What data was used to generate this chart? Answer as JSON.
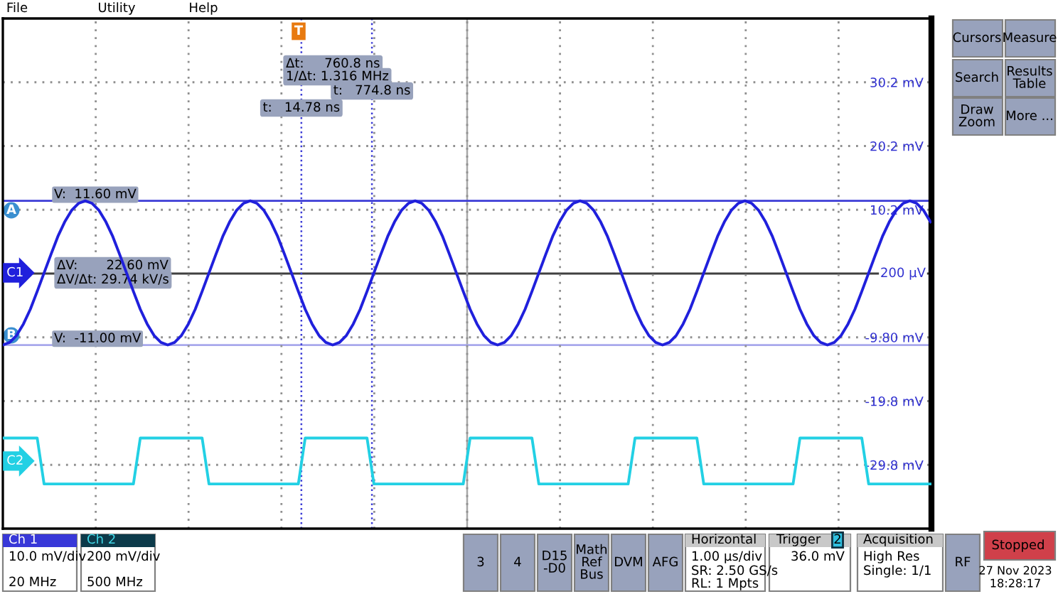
{
  "chart_data": {
    "type": "line",
    "x": [
      -3200,
      -3126,
      -3052,
      -2978,
      -2904,
      -2830,
      -2756,
      -2682,
      -2608,
      -2534,
      -2460,
      -2386,
      -2312,
      -2238,
      -2164,
      -2090,
      -2016,
      -1942,
      -1868,
      -1794,
      -1720,
      -1646,
      -1572,
      -1498,
      -1424,
      -1350,
      -1276,
      -1202,
      -1128,
      -1054,
      -980,
      -906,
      -832,
      -758,
      -684,
      -610,
      -536,
      -462,
      -388,
      -314,
      -240,
      -166,
      -92,
      -18,
      56,
      130,
      204,
      278,
      352,
      426,
      500,
      574,
      648,
      722,
      796,
      870,
      944,
      1018,
      1092,
      1166,
      1240,
      1314,
      1388,
      1462,
      1536,
      1610,
      1684,
      1758,
      1832,
      1906,
      1980,
      2054,
      2128,
      2202,
      2276,
      2350,
      2424,
      2498,
      2572,
      2646,
      2720,
      2794,
      2868,
      2942,
      3016,
      3090,
      3164,
      3238,
      3312,
      3386,
      3460,
      3534,
      3608,
      3682,
      3756,
      3830,
      3904,
      3978,
      4052,
      4126,
      4200,
      4274,
      4348,
      4422,
      4496,
      4570,
      4644,
      4718,
      4792,
      4866,
      4940,
      5014,
      5088,
      5162,
      5236,
      5310,
      5384,
      5458,
      5532,
      5606,
      5680,
      5754,
      5828,
      5902,
      5976,
      6050,
      6124,
      6198,
      6272,
      6346,
      6420,
      6494,
      6568,
      6642,
      6716,
      6790
    ],
    "series": [
      {
        "name": "C1",
        "color": "#2020dc",
        "values": [
          -11.0,
          -10.6,
          -9.5,
          -7.7,
          -5.4,
          -2.6,
          0.3,
          3.2,
          6.0,
          8.3,
          10.1,
          11.2,
          11.6,
          11.2,
          10.1,
          8.3,
          6.0,
          3.2,
          0.3,
          -2.6,
          -5.4,
          -7.7,
          -9.5,
          -10.6,
          -11.0,
          -10.6,
          -9.5,
          -7.7,
          -5.4,
          -2.6,
          0.3,
          3.2,
          6.0,
          8.3,
          10.1,
          11.2,
          11.6,
          11.2,
          10.1,
          8.3,
          6.0,
          3.2,
          0.3,
          -2.6,
          -5.4,
          -7.7,
          -9.5,
          -10.6,
          -11.0,
          -10.6,
          -9.5,
          -7.7,
          -5.4,
          -2.6,
          0.3,
          3.2,
          6.0,
          8.3,
          10.1,
          11.2,
          11.6,
          11.2,
          10.1,
          8.3,
          6.0,
          3.2,
          0.3,
          -2.6,
          -5.4,
          -7.7,
          -9.5,
          -10.6,
          -11.0,
          -10.6,
          -9.5,
          -7.7,
          -5.4,
          -2.6,
          0.3,
          3.2,
          6.0,
          8.3,
          10.1,
          11.2,
          11.6,
          11.2,
          10.1,
          8.3,
          6.0,
          3.2,
          0.3,
          -2.6,
          -5.4,
          -7.7,
          -9.5,
          -10.6,
          -11.0,
          -10.6,
          -9.5,
          -7.7,
          -5.4,
          -2.6,
          0.3,
          3.2,
          6.0,
          8.3,
          10.1,
          11.2,
          11.6,
          11.2,
          10.1,
          8.3,
          6.0,
          3.2,
          0.3,
          -2.6,
          -5.4,
          -7.7,
          -9.5,
          -10.6,
          -11.0,
          -10.6,
          -9.5,
          -7.7,
          -5.4,
          -2.6,
          0.3,
          3.2,
          6.0,
          8.3,
          10.1,
          11.2,
          11.6,
          11.2,
          10.1,
          8.3
        ]
      },
      {
        "name": "C2",
        "color": "#22d0e4",
        "values": [
          -25.6,
          -25.6,
          -25.6,
          -25.6,
          -25.6,
          -25.6,
          -32.8,
          -32.8,
          -32.8,
          -32.8,
          -32.8,
          -32.8,
          -32.8,
          -32.8,
          -32.8,
          -32.8,
          -32.8,
          -32.8,
          -32.8,
          -32.8,
          -25.6,
          -25.6,
          -25.6,
          -25.6,
          -25.6,
          -25.6,
          -25.6,
          -25.6,
          -25.6,
          -25.6,
          -32.8,
          -32.8,
          -32.8,
          -32.8,
          -32.8,
          -32.8,
          -32.8,
          -32.8,
          -32.8,
          -32.8,
          -32.8,
          -32.8,
          -32.8,
          -32.8,
          -25.6,
          -25.6,
          -25.6,
          -25.6,
          -25.6,
          -25.6,
          -25.6,
          -25.6,
          -25.6,
          -25.6,
          -32.8,
          -32.8,
          -32.8,
          -32.8,
          -32.8,
          -32.8,
          -32.8,
          -32.8,
          -32.8,
          -32.8,
          -32.8,
          -32.8,
          -32.8,
          -32.8,
          -25.6,
          -25.6,
          -25.6,
          -25.6,
          -25.6,
          -25.6,
          -25.6,
          -25.6,
          -25.6,
          -25.6,
          -32.8,
          -32.8,
          -32.8,
          -32.8,
          -32.8,
          -32.8,
          -32.8,
          -32.8,
          -32.8,
          -32.8,
          -32.8,
          -32.8,
          -32.8,
          -32.8,
          -25.6,
          -25.6,
          -25.6,
          -25.6,
          -25.6,
          -25.6,
          -25.6,
          -25.6,
          -25.6,
          -25.6,
          -32.8,
          -32.8,
          -32.8,
          -32.8,
          -32.8,
          -32.8,
          -32.8,
          -32.8,
          -32.8,
          -32.8,
          -32.8,
          -32.8,
          -32.8,
          -32.8,
          -25.6,
          -25.6,
          -25.6,
          -25.6,
          -25.6,
          -25.6,
          -25.6,
          -25.6,
          -25.6,
          -25.6,
          -32.8,
          -32.8,
          -32.8,
          -32.8,
          -32.8,
          -32.8,
          -32.8,
          -32.8,
          -32.8,
          -32.8
        ]
      }
    ],
    "xlim": [
      -3200,
      6800
    ],
    "xticks": [
      {
        "value": -2200,
        "label": null
      },
      {
        "value": -1200,
        "label": null
      },
      {
        "value": -200,
        "label": null
      },
      {
        "value": 800,
        "label": null
      },
      {
        "value": 1800,
        "label": null
      },
      {
        "value": 2800,
        "label": null
      },
      {
        "value": 3800,
        "label": null
      },
      {
        "value": 4800,
        "label": null
      },
      {
        "value": 5800,
        "label": null
      }
    ],
    "ylim": [
      -39.8,
      40.2
    ],
    "yticks": [
      {
        "value": 30.2,
        "label": "30.2 mV"
      },
      {
        "value": 20.2,
        "label": "20.2 mV"
      },
      {
        "value": 10.2,
        "label": "10.2 mV"
      },
      {
        "value": -9.8,
        "label": "-9.80 mV"
      },
      {
        "value": -19.8,
        "label": "-19.8 mV"
      },
      {
        "value": -29.8,
        "label": "-29.8 mV"
      }
    ],
    "tick_labels": "y",
    "grid": true,
    "ref_lines": [
      {
        "axis": "y",
        "value": 0.2,
        "label": "200 µV",
        "color": "#404040"
      },
      {
        "axis": "x",
        "value": 1800,
        "color": "#a8a8a8"
      },
      {
        "axis": "y",
        "value": 11.6,
        "label": "V:  11.60 mV",
        "color": "#3b3bd6"
      },
      {
        "axis": "y",
        "value": -11.0,
        "label": "V:  -11.00 mV",
        "color": "#a8a8ec"
      },
      {
        "axis": "x",
        "value": 14.78,
        "label": "t:   14.78 ns",
        "color": "#3b3bd6",
        "line_style": "dotted"
      },
      {
        "axis": "x",
        "value": 774.8,
        "label": "t:   774.8 ns",
        "color": "#3b3bd6",
        "line_style": "dotted"
      }
    ],
    "annotations": [
      "Δt:     760.8 ns",
      "1/Δt: 1.316 MHz",
      "ΔV:       22.60 mV",
      "ΔV/Δt: 29.74 kV/s",
      "A",
      "B",
      "T",
      "File",
      "Utility",
      "Help",
      "Cursors",
      "Measure",
      "Search",
      "Results Table",
      "Draw Zoom",
      "More ...",
      "Ch 1",
      "10.0 mV/div",
      "20 MHz",
      "Ch 2",
      "200 mV/div",
      "500 MHz",
      "3",
      "4",
      "D15 -D0",
      "Math Ref Bus",
      "DVM",
      "AFG",
      "Horizontal",
      "1.00 µs/div",
      "SR: 2.50 GS/s",
      "RL: 1 Mpts",
      "Trigger",
      "2",
      "36.0 mV",
      "Acquisition",
      "High Res",
      "Single: 1/1",
      "RF",
      "Stopped",
      "27 Nov 2023",
      "18:28:17"
    ]
  }
}
